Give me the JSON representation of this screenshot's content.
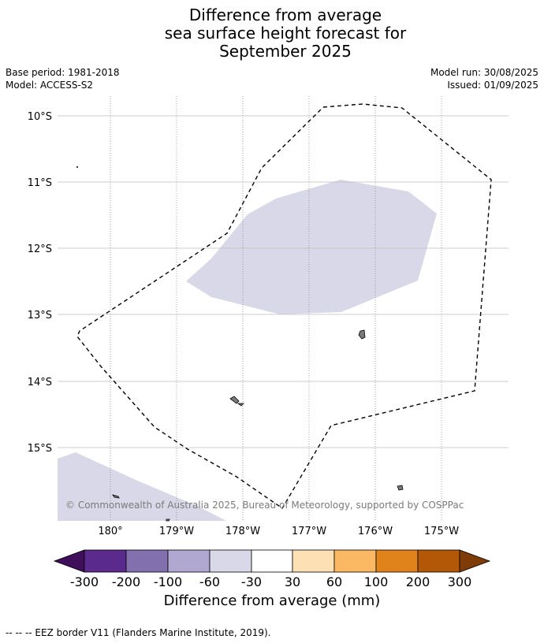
{
  "title_lines": [
    "Difference from average",
    "sea surface height forecast for",
    "September 2025"
  ],
  "base_period": "Base period: 1981-2018",
  "model": "Model: ACCESS-S2",
  "model_run": "Model run: 30/08/2025",
  "issued": "Issued: 01/09/2025",
  "copyright": "© Commonwealth of Australia 2025, Bureau of Meteorology, supported by COSPPac",
  "lat_labels": [
    "10°S",
    "11°S",
    "12°S",
    "13°S",
    "14°S",
    "15°S"
  ],
  "lon_labels": [
    "180°",
    "179°W",
    "178°W",
    "177°W",
    "176°W",
    "175°W"
  ],
  "colorbar": {
    "title": "Difference from average (mm)",
    "ticks": [
      "-300",
      "-200",
      "-100",
      "-60",
      "-30",
      "30",
      "60",
      "100",
      "200",
      "300"
    ],
    "colors": [
      "#3f0f5c",
      "#5a2a8c",
      "#8170ad",
      "#b1a8d2",
      "#d8d8e9",
      "#ffffff",
      "#fde0b4",
      "#fbb862",
      "#e0831a",
      "#b35806",
      "#7f3b08"
    ]
  },
  "anomaly_color": "#d8d8e9",
  "footnote": "-- -- -- EEZ border V11 (Flanders Marine Institute, 2019)."
}
